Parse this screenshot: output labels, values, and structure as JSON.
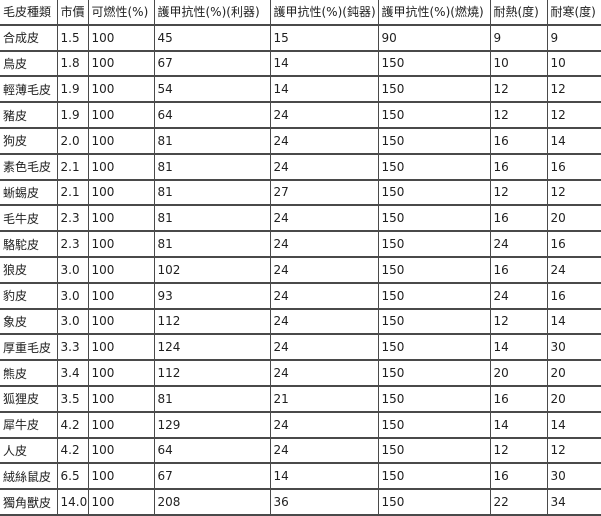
{
  "page": {
    "description": "Fur and leather material stats table (Traditional Chinese)"
  },
  "colors": {
    "border": "#4a4a4a",
    "text": "#1f1f1f",
    "background": "#ffffff"
  },
  "chart_data": {
    "type": "table",
    "columns": [
      "毛皮種類",
      "市價",
      "可燃性(%)",
      "護甲抗性(%)(利器)",
      "護甲抗性(%)(鈍器)",
      "護甲抗性(%)(燃燒)",
      "耐熱(度)",
      "耐寒(度)"
    ],
    "rows": [
      [
        "合成皮",
        "1.5",
        "100",
        "45",
        "15",
        "90",
        "9",
        "9"
      ],
      [
        "鳥皮",
        "1.8",
        "100",
        "67",
        "14",
        "150",
        "10",
        "10"
      ],
      [
        "輕薄毛皮",
        "1.9",
        "100",
        "54",
        "14",
        "150",
        "12",
        "12"
      ],
      [
        "豬皮",
        "1.9",
        "100",
        "64",
        "24",
        "150",
        "12",
        "12"
      ],
      [
        "狗皮",
        "2.0",
        "100",
        "81",
        "24",
        "150",
        "16",
        "14"
      ],
      [
        "素色毛皮",
        "2.1",
        "100",
        "81",
        "24",
        "150",
        "16",
        "16"
      ],
      [
        "蜥蜴皮",
        "2.1",
        "100",
        "81",
        "27",
        "150",
        "12",
        "12"
      ],
      [
        "毛牛皮",
        "2.3",
        "100",
        "81",
        "24",
        "150",
        "16",
        "20"
      ],
      [
        "駱駝皮",
        "2.3",
        "100",
        "81",
        "24",
        "150",
        "24",
        "16"
      ],
      [
        "狼皮",
        "3.0",
        "100",
        "102",
        "24",
        "150",
        "16",
        "24"
      ],
      [
        "豹皮",
        "3.0",
        "100",
        "93",
        "24",
        "150",
        "24",
        "16"
      ],
      [
        "象皮",
        "3.0",
        "100",
        "112",
        "24",
        "150",
        "12",
        "14"
      ],
      [
        "厚重毛皮",
        "3.3",
        "100",
        "124",
        "24",
        "150",
        "14",
        "30"
      ],
      [
        "熊皮",
        "3.4",
        "100",
        "112",
        "24",
        "150",
        "20",
        "20"
      ],
      [
        "狐狸皮",
        "3.5",
        "100",
        "81",
        "21",
        "150",
        "16",
        "20"
      ],
      [
        "犀牛皮",
        "4.2",
        "100",
        "129",
        "24",
        "150",
        "14",
        "14"
      ],
      [
        "人皮",
        "4.2",
        "100",
        "64",
        "24",
        "150",
        "12",
        "12"
      ],
      [
        "絨絲鼠皮",
        "6.5",
        "100",
        "67",
        "14",
        "150",
        "16",
        "30"
      ],
      [
        "獨角獸皮",
        "14.0",
        "100",
        "208",
        "36",
        "150",
        "22",
        "34"
      ]
    ]
  }
}
